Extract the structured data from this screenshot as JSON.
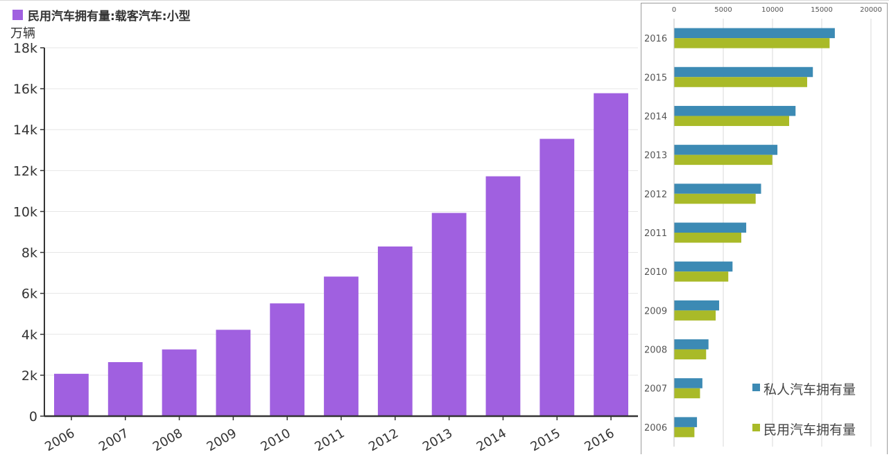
{
  "chart_data": [
    {
      "type": "bar",
      "legend": {
        "label": "民用汽车拥有量:载客汽车:小型",
        "color": "#a060e0"
      },
      "ylabel": "万辆",
      "categories": [
        "2006",
        "2007",
        "2008",
        "2009",
        "2010",
        "2011",
        "2012",
        "2013",
        "2014",
        "2015",
        "2016"
      ],
      "series": [
        {
          "name": "民用汽车拥有量:载客汽车:小型",
          "color": "#a060e0",
          "values": [
            2070,
            2640,
            3260,
            4220,
            5510,
            6820,
            8290,
            9930,
            11720,
            13550,
            15780
          ]
        }
      ],
      "ylim": [
        0,
        18000
      ],
      "yticks": [
        0,
        2000,
        4000,
        6000,
        8000,
        10000,
        12000,
        14000,
        16000,
        18000
      ],
      "ytick_labels": [
        "0",
        "2k",
        "4k",
        "6k",
        "8k",
        "10k",
        "12k",
        "14k",
        "16k",
        "18k"
      ],
      "grid": true
    },
    {
      "type": "bar",
      "orientation": "horizontal",
      "categories": [
        "2016",
        "2015",
        "2014",
        "2013",
        "2012",
        "2011",
        "2010",
        "2009",
        "2008",
        "2007",
        "2006"
      ],
      "series": [
        {
          "name": "私人汽车拥有量",
          "color": "#3c8ab4",
          "values": [
            16330,
            14100,
            12340,
            10500,
            8840,
            7330,
            5940,
            4580,
            3500,
            2880,
            2330
          ]
        },
        {
          "name": "民用汽车拥有量",
          "color": "#a9ba28",
          "values": [
            15800,
            13520,
            11690,
            9980,
            8290,
            6830,
            5510,
            4230,
            3260,
            2640,
            2070
          ]
        }
      ],
      "xlim": [
        0,
        20000
      ],
      "xticks": [
        0,
        5000,
        10000,
        15000,
        20000
      ],
      "xtick_labels": [
        "0",
        "5000",
        "10000",
        "15000",
        "20000"
      ],
      "grid": true,
      "legend_position": "bottom-right"
    }
  ]
}
